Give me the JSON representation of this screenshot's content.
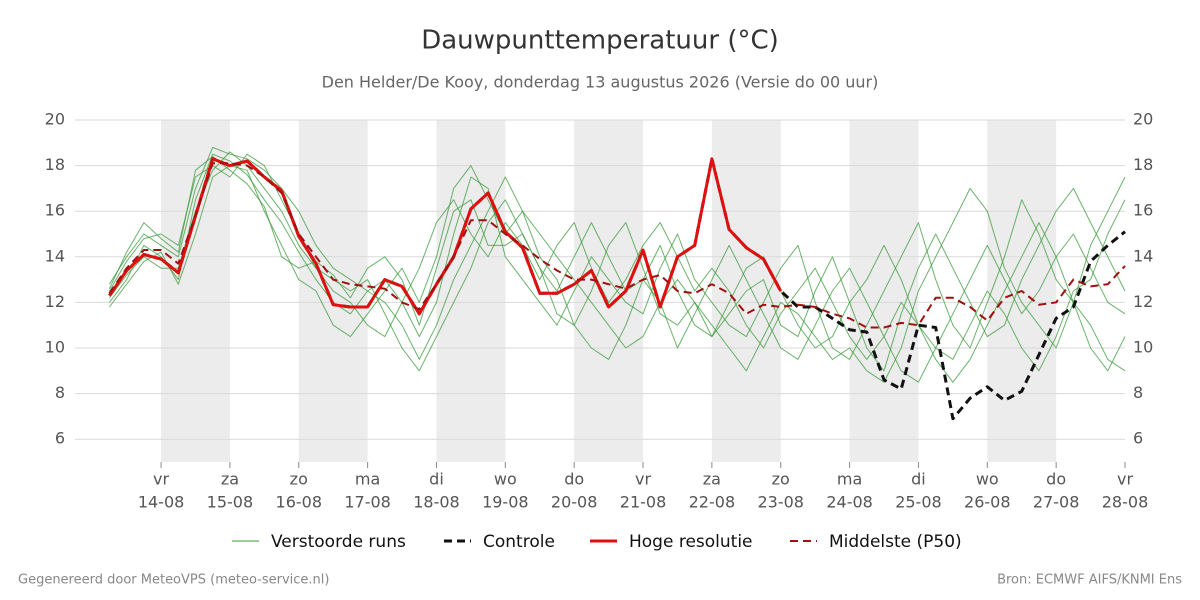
{
  "chart_data": {
    "type": "line",
    "title": "Dauwpunttemperatuur (°C)",
    "subtitle": "Den Helder/De Kooy, donderdag 13 augustus 2026 (Versie do 00 uur)",
    "footer_left": "Gegenereerd door MeteoVPS (meteo-service.nl)",
    "footer_right": "Bron: ECMWF AIFS/KNMI Ens",
    "x": [
      13.25,
      13.5,
      13.75,
      14.0,
      14.25,
      14.5,
      14.75,
      15.0,
      15.25,
      15.5,
      15.75,
      16.0,
      16.25,
      16.5,
      16.75,
      17.0,
      17.25,
      17.5,
      17.75,
      18.0,
      18.25,
      18.5,
      18.75,
      19.0,
      19.25,
      19.5,
      19.75,
      20.0,
      20.25,
      20.5,
      20.75,
      21.0,
      21.25,
      21.5,
      21.75,
      22.0,
      22.25,
      22.5,
      22.75,
      23.0,
      23.25,
      23.5,
      23.75,
      24.0,
      24.25,
      24.5,
      24.75,
      25.0,
      25.25,
      25.5,
      25.75,
      26.0,
      26.25,
      26.5,
      26.75,
      27.0,
      27.25,
      27.5,
      27.75,
      28.0
    ],
    "xlim": [
      12.75,
      28
    ],
    "xticks": [
      {
        "value": 14,
        "label": [
          "vr",
          "14-08"
        ]
      },
      {
        "value": 15,
        "label": [
          "za",
          "15-08"
        ]
      },
      {
        "value": 16,
        "label": [
          "zo",
          "16-08"
        ]
      },
      {
        "value": 17,
        "label": [
          "ma",
          "17-08"
        ]
      },
      {
        "value": 18,
        "label": [
          "di",
          "18-08"
        ]
      },
      {
        "value": 19,
        "label": [
          "wo",
          "19-08"
        ]
      },
      {
        "value": 20,
        "label": [
          "do",
          "20-08"
        ]
      },
      {
        "value": 21,
        "label": [
          "vr",
          "21-08"
        ]
      },
      {
        "value": 22,
        "label": [
          "za",
          "22-08"
        ]
      },
      {
        "value": 23,
        "label": [
          "zo",
          "23-08"
        ]
      },
      {
        "value": 24,
        "label": [
          "ma",
          "24-08"
        ]
      },
      {
        "value": 25,
        "label": [
          "di",
          "25-08"
        ]
      },
      {
        "value": 26,
        "label": [
          "wo",
          "26-08"
        ]
      },
      {
        "value": 27,
        "label": [
          "do",
          "27-08"
        ]
      },
      {
        "value": 28,
        "label": [
          "vr",
          "28-08"
        ]
      }
    ],
    "ylim": [
      5,
      20
    ],
    "yticks": [
      6,
      8,
      10,
      12,
      14,
      16,
      18,
      20
    ],
    "grid": true,
    "ensemble": {
      "name": "Verstoorde runs",
      "color": "#3a9a3a",
      "members": [
        [
          12.0,
          13.0,
          14.5,
          14.0,
          13.0,
          16.5,
          18.5,
          18.2,
          17.6,
          16.5,
          15.5,
          14.2,
          13.0,
          12.0,
          11.5,
          12.5,
          13.0,
          12.0,
          10.5,
          12.0,
          15.0,
          17.5,
          17.0,
          14.0,
          13.0,
          12.0,
          11.0,
          12.5,
          14.0,
          13.0,
          12.0,
          11.5,
          13.5,
          15.0,
          13.0,
          12.0,
          11.0,
          10.5,
          12.0,
          13.5,
          14.5,
          12.0,
          10.0,
          9.5,
          11.0,
          12.5,
          14.0,
          15.5,
          13.0,
          11.0,
          10.0,
          12.0,
          14.0,
          16.5,
          15.0,
          13.0,
          12.0,
          10.0,
          9.0,
          10.5
        ],
        [
          12.8,
          14.0,
          15.0,
          14.5,
          14.0,
          17.0,
          18.8,
          18.5,
          18.3,
          17.8,
          17.0,
          16.0,
          14.5,
          13.5,
          13.0,
          12.5,
          12.0,
          11.0,
          9.5,
          11.0,
          13.0,
          14.5,
          16.0,
          17.5,
          16.0,
          15.0,
          14.0,
          13.0,
          12.0,
          11.0,
          10.0,
          10.5,
          12.0,
          13.0,
          12.0,
          11.0,
          10.0,
          9.0,
          10.5,
          12.0,
          11.5,
          10.5,
          9.5,
          10.0,
          9.0,
          8.5,
          10.0,
          12.5,
          14.0,
          15.5,
          17.0,
          16.0,
          13.5,
          12.0,
          11.0,
          10.0,
          12.0,
          14.5,
          16.0,
          17.5
        ],
        [
          11.8,
          12.8,
          13.8,
          14.2,
          12.8,
          15.0,
          17.5,
          18.0,
          17.8,
          16.0,
          14.5,
          13.0,
          12.5,
          11.0,
          10.5,
          11.5,
          12.5,
          13.5,
          12.0,
          14.0,
          17.0,
          18.0,
          16.5,
          15.0,
          16.0,
          14.0,
          13.0,
          11.0,
          10.0,
          9.5,
          11.0,
          13.0,
          12.0,
          10.0,
          11.5,
          13.0,
          14.5,
          13.0,
          11.5,
          10.0,
          9.5,
          11.0,
          12.5,
          13.5,
          12.0,
          10.5,
          9.0,
          8.5,
          10.0,
          11.5,
          13.0,
          14.5,
          13.0,
          11.5,
          12.5,
          14.0,
          15.0,
          13.5,
          12.0,
          11.5
        ],
        [
          12.5,
          13.8,
          14.8,
          15.0,
          14.5,
          17.5,
          18.0,
          17.5,
          18.5,
          18.0,
          16.5,
          15.0,
          13.5,
          13.0,
          12.5,
          13.0,
          11.5,
          10.0,
          9.0,
          10.5,
          12.0,
          13.5,
          15.5,
          16.5,
          15.0,
          13.5,
          12.5,
          14.0,
          15.5,
          14.0,
          12.5,
          13.0,
          14.5,
          12.5,
          11.0,
          10.5,
          12.0,
          13.5,
          14.0,
          12.5,
          11.0,
          10.0,
          10.5,
          12.0,
          13.0,
          14.5,
          13.0,
          11.0,
          10.0,
          9.5,
          11.0,
          12.5,
          11.5,
          10.0,
          9.0,
          10.5,
          12.5,
          13.0,
          15.0,
          16.5
        ],
        [
          12.2,
          13.2,
          14.0,
          13.5,
          13.5,
          16.0,
          17.8,
          18.6,
          18.0,
          17.0,
          16.0,
          14.5,
          13.5,
          12.5,
          12.0,
          11.0,
          10.5,
          12.0,
          13.5,
          15.5,
          16.5,
          15.0,
          14.0,
          15.5,
          14.5,
          13.0,
          14.5,
          15.5,
          13.5,
          12.0,
          13.0,
          14.5,
          15.5,
          14.0,
          12.5,
          13.5,
          12.5,
          11.0,
          10.0,
          11.5,
          12.5,
          13.5,
          12.0,
          10.5,
          9.5,
          10.5,
          12.0,
          11.0,
          9.5,
          8.5,
          9.5,
          11.0,
          12.5,
          14.0,
          15.5,
          14.0,
          12.0,
          11.0,
          9.5,
          9.0
        ],
        [
          12.6,
          14.2,
          15.5,
          14.8,
          14.2,
          17.8,
          18.4,
          17.8,
          17.2,
          16.2,
          14.0,
          13.5,
          13.8,
          13.2,
          12.2,
          13.5,
          14.0,
          13.0,
          11.0,
          13.5,
          16.0,
          16.5,
          14.5,
          14.5,
          15.0,
          13.5,
          11.5,
          11.0,
          12.5,
          14.5,
          15.5,
          13.5,
          11.5,
          11.0,
          12.0,
          10.5,
          11.5,
          12.5,
          13.0,
          11.0,
          10.5,
          12.5,
          14.0,
          12.0,
          10.0,
          9.0,
          11.5,
          13.5,
          15.0,
          13.5,
          12.0,
          10.5,
          11.0,
          13.0,
          14.5,
          16.0,
          17.0,
          15.5,
          14.0,
          12.5
        ]
      ]
    },
    "series": [
      {
        "name": "Controle",
        "color": "#111111",
        "dash": true,
        "width": 3,
        "values": [
          12.3,
          13.4,
          14.1,
          13.9,
          13.3,
          15.8,
          18.3,
          18.0,
          18.2,
          17.5,
          16.9,
          14.9,
          13.7,
          11.9,
          11.8,
          11.8,
          13.0,
          12.7,
          11.5,
          12.8,
          14.0,
          16.1,
          16.8,
          15.1,
          14.4,
          12.4,
          12.4,
          12.8,
          13.4,
          11.8,
          12.5,
          14.3,
          11.8,
          14.0,
          14.5,
          18.3,
          15.2,
          14.4,
          13.9,
          12.5,
          11.8,
          11.8,
          11.3,
          10.8,
          10.7,
          8.6,
          8.2,
          11.0,
          10.9,
          6.9,
          7.8,
          8.3,
          7.7,
          8.1,
          9.7,
          11.3,
          11.8,
          13.8,
          14.5,
          15.1
        ]
      },
      {
        "name": "Hoge resolutie",
        "color": "#e01010",
        "dash": false,
        "width": 3,
        "values": [
          12.3,
          13.4,
          14.1,
          13.9,
          13.3,
          15.8,
          18.3,
          18.0,
          18.2,
          17.5,
          16.9,
          14.9,
          13.7,
          11.9,
          11.8,
          11.8,
          13.0,
          12.7,
          11.5,
          12.8,
          14.0,
          16.1,
          16.8,
          15.1,
          14.4,
          12.4,
          12.4,
          12.8,
          13.4,
          11.8,
          12.5,
          14.3,
          11.8,
          14.0,
          14.5,
          18.3,
          15.2,
          14.4,
          13.9,
          12.5,
          null,
          null,
          null,
          null,
          null,
          null,
          null,
          null,
          null,
          null,
          null,
          null,
          null,
          null,
          null,
          null,
          null,
          null,
          null,
          null
        ]
      },
      {
        "name": "Middelste (P50)",
        "color": "#a01010",
        "dash": true,
        "width": 2,
        "values": [
          12.4,
          13.5,
          14.3,
          14.3,
          13.7,
          15.8,
          18.1,
          18.1,
          18.0,
          17.5,
          16.8,
          15.0,
          14.0,
          13.0,
          12.8,
          12.7,
          12.6,
          12.0,
          11.7,
          12.8,
          14.0,
          15.6,
          15.6,
          15.0,
          14.5,
          13.9,
          13.4,
          13.0,
          13.0,
          12.8,
          12.6,
          13.0,
          13.2,
          12.5,
          12.4,
          12.8,
          12.4,
          11.5,
          11.9,
          11.8,
          11.9,
          11.8,
          11.5,
          11.3,
          10.9,
          10.9,
          11.1,
          11.0,
          12.2,
          12.2,
          11.8,
          11.2,
          12.2,
          12.5,
          11.9,
          12.0,
          13.0,
          12.7,
          12.8,
          13.6
        ]
      }
    ]
  }
}
